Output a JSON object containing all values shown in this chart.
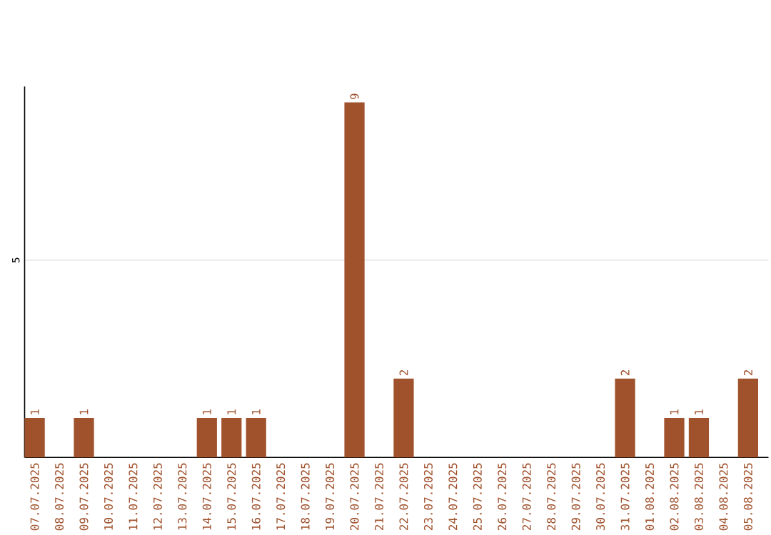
{
  "chart_data": {
    "type": "bar",
    "categories": [
      "07.07.2025",
      "08.07.2025",
      "09.07.2025",
      "10.07.2025",
      "11.07.2025",
      "12.07.2025",
      "13.07.2025",
      "14.07.2025",
      "15.07.2025",
      "16.07.2025",
      "17.07.2025",
      "18.07.2025",
      "19.07.2025",
      "20.07.2025",
      "21.07.2025",
      "22.07.2025",
      "23.07.2025",
      "24.07.2025",
      "25.07.2025",
      "26.07.2025",
      "27.07.2025",
      "28.07.2025",
      "29.07.2025",
      "30.07.2025",
      "31.07.2025",
      "01.08.2025",
      "02.08.2025",
      "03.08.2025",
      "04.08.2025",
      "05.08.2025"
    ],
    "values": [
      1,
      0,
      1,
      0,
      0,
      0,
      0,
      1,
      1,
      1,
      0,
      0,
      0,
      9,
      0,
      2,
      0,
      0,
      0,
      0,
      0,
      0,
      0,
      0,
      2,
      0,
      1,
      1,
      0,
      2
    ],
    "value_labels": [
      "1",
      null,
      "1",
      null,
      null,
      null,
      null,
      "1",
      "1",
      "1",
      null,
      null,
      null,
      "9",
      null,
      "2",
      null,
      null,
      null,
      null,
      null,
      null,
      null,
      null,
      "2",
      null,
      "1",
      "1",
      null,
      "2"
    ],
    "color": "#a0522d",
    "ylim": [
      0,
      9.4
    ],
    "yticks": [
      5
    ],
    "grid": "y"
  }
}
